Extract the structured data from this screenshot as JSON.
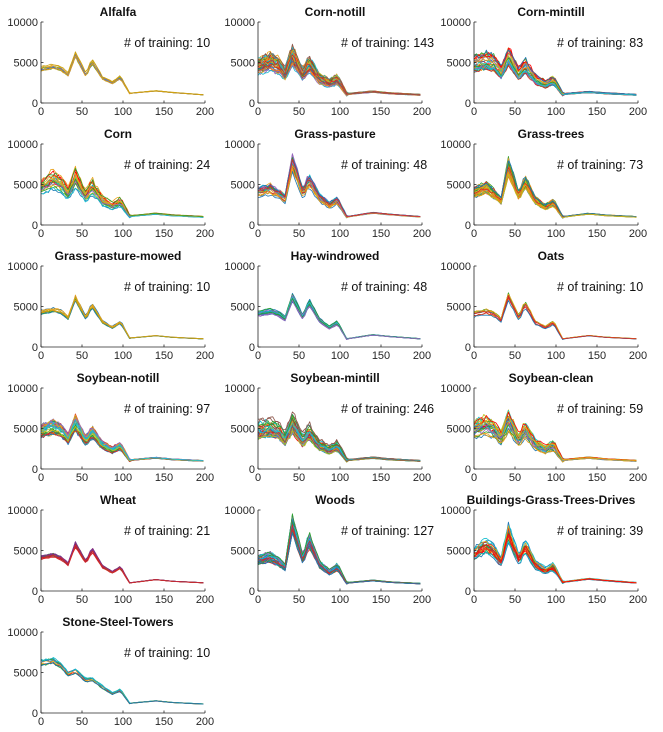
{
  "figure": {
    "type": "small-multiples",
    "layout": "6 rows x 3 columns, 16 panels"
  },
  "chart_data": [
    {
      "type": "line",
      "title": "Alfalfa",
      "annotation": "# of training: 10",
      "xlim": [
        0,
        200
      ],
      "ylim": [
        0,
        10000
      ],
      "xticks": [
        0,
        50,
        100,
        150,
        200
      ],
      "yticks": [
        0,
        5000,
        10000
      ],
      "n_series": 10,
      "profile": [
        4200,
        4500,
        4200,
        3500,
        6000,
        3400,
        5200,
        3100,
        2500,
        3200,
        1200,
        1500,
        1300,
        1000
      ],
      "spread": 0.08,
      "colors": [
        "#e8a018",
        "#c8a010",
        "#6a9a2a",
        "#5a6ec8"
      ]
    },
    {
      "type": "line",
      "title": "Corn-notill",
      "annotation": "# of training: 143",
      "xlim": [
        0,
        200
      ],
      "ylim": [
        0,
        10000
      ],
      "xticks": [
        0,
        50,
        100,
        150,
        200
      ],
      "yticks": [
        0,
        5000,
        10000
      ],
      "n_series": 40,
      "profile": [
        4500,
        5000,
        4600,
        3600,
        5800,
        3400,
        4800,
        3000,
        2400,
        2900,
        1100,
        1400,
        1200,
        1000
      ],
      "spread": 0.22,
      "colors": [
        "#ff0000",
        "#e8a018",
        "#2ca02c",
        "#1f77b4",
        "#9467bd",
        "#17becf",
        "#bcbd22",
        "#ff7f0e",
        "#d62728",
        "#8c564b"
      ]
    },
    {
      "type": "line",
      "title": "Corn-mintill",
      "annotation": "# of training: 83",
      "xlim": [
        0,
        200
      ],
      "ylim": [
        0,
        10000
      ],
      "xticks": [
        0,
        50,
        100,
        150,
        200
      ],
      "yticks": [
        0,
        5000,
        10000
      ],
      "n_series": 30,
      "profile": [
        4800,
        5200,
        4800,
        3700,
        5800,
        3400,
        4600,
        2900,
        2300,
        2800,
        1100,
        1350,
        1200,
        1000
      ],
      "spread": 0.2,
      "colors": [
        "#ff0000",
        "#e8a018",
        "#2ca02c",
        "#1f77b4",
        "#9467bd",
        "#17becf",
        "#bcbd22",
        "#d62728"
      ]
    },
    {
      "type": "line",
      "title": "Corn",
      "annotation": "# of training: 24",
      "xlim": [
        0,
        200
      ],
      "ylim": [
        0,
        10000
      ],
      "xticks": [
        0,
        50,
        100,
        150,
        200
      ],
      "yticks": [
        0,
        5000,
        10000
      ],
      "n_series": 24,
      "profile": [
        4700,
        5600,
        5000,
        3900,
        5800,
        3500,
        4800,
        3000,
        2400,
        2900,
        1100,
        1400,
        1200,
        1000
      ],
      "spread": 0.2,
      "colors": [
        "#ff0000",
        "#e8a018",
        "#2ca02c",
        "#1f77b4",
        "#9467bd",
        "#17becf",
        "#bcbd22"
      ]
    },
    {
      "type": "line",
      "title": "Grass-pasture",
      "annotation": "# of training: 48",
      "xlim": [
        0,
        200
      ],
      "ylim": [
        0,
        10000
      ],
      "xticks": [
        0,
        50,
        100,
        150,
        200
      ],
      "yticks": [
        0,
        5000,
        10000
      ],
      "n_series": 24,
      "profile": [
        4000,
        4400,
        3800,
        3200,
        7600,
        3800,
        5500,
        3300,
        2400,
        3000,
        1000,
        1500,
        1300,
        1000
      ],
      "spread": 0.15,
      "colors": [
        "#17becf",
        "#1f77b4",
        "#2ca02c",
        "#e8a018",
        "#9467bd",
        "#d62728"
      ]
    },
    {
      "type": "line",
      "title": "Grass-trees",
      "annotation": "# of training: 73",
      "xlim": [
        0,
        200
      ],
      "ylim": [
        0,
        10000
      ],
      "xticks": [
        0,
        50,
        100,
        150,
        200
      ],
      "yticks": [
        0,
        5000,
        10000
      ],
      "n_series": 30,
      "profile": [
        4000,
        4600,
        3800,
        3000,
        7200,
        3500,
        5400,
        3000,
        2200,
        2800,
        1000,
        1400,
        1200,
        1000
      ],
      "spread": 0.16,
      "colors": [
        "#e8a018",
        "#d62728",
        "#2ca02c",
        "#1f77b4",
        "#ff7f0e",
        "#bcbd22"
      ]
    },
    {
      "type": "line",
      "title": "Grass-pasture-mowed",
      "annotation": "# of training: 10",
      "xlim": [
        0,
        200
      ],
      "ylim": [
        0,
        10000
      ],
      "xticks": [
        0,
        50,
        100,
        150,
        200
      ],
      "yticks": [
        0,
        5000,
        10000
      ],
      "n_series": 10,
      "profile": [
        4300,
        4600,
        4300,
        3600,
        6000,
        3500,
        5200,
        3100,
        2400,
        3100,
        1100,
        1400,
        1200,
        1000
      ],
      "spread": 0.08,
      "colors": [
        "#e8a018",
        "#c8a010",
        "#2ca02c",
        "#1f77b4"
      ]
    },
    {
      "type": "line",
      "title": "Hay-windrowed",
      "annotation": "# of training: 48",
      "xlim": [
        0,
        200
      ],
      "ylim": [
        0,
        10000
      ],
      "xticks": [
        0,
        50,
        100,
        150,
        200
      ],
      "yticks": [
        0,
        5000,
        10000
      ],
      "n_series": 24,
      "profile": [
        4100,
        4400,
        4100,
        3500,
        6100,
        3600,
        5600,
        3300,
        2400,
        3000,
        1000,
        1500,
        1300,
        1000
      ],
      "spread": 0.08,
      "colors": [
        "#17becf",
        "#1f77b4",
        "#2ca02c",
        "#9467bd"
      ]
    },
    {
      "type": "line",
      "title": "Oats",
      "annotation": "# of training: 10",
      "xlim": [
        0,
        200
      ],
      "ylim": [
        0,
        10000
      ],
      "xticks": [
        0,
        50,
        100,
        150,
        200
      ],
      "yticks": [
        0,
        5000,
        10000
      ],
      "n_series": 10,
      "profile": [
        4000,
        4300,
        4000,
        3300,
        6200,
        3500,
        5300,
        3000,
        2400,
        3000,
        1000,
        1400,
        1200,
        1000
      ],
      "spread": 0.08,
      "colors": [
        "#e8a018",
        "#d62728",
        "#2ca02c",
        "#1f77b4"
      ]
    },
    {
      "type": "line",
      "title": "Soybean-notill",
      "annotation": "# of training: 97",
      "xlim": [
        0,
        200
      ],
      "ylim": [
        0,
        10000
      ],
      "xticks": [
        0,
        50,
        100,
        150,
        200
      ],
      "yticks": [
        0,
        5000,
        10000
      ],
      "n_series": 36,
      "profile": [
        4800,
        5300,
        4800,
        3800,
        5800,
        3500,
        4700,
        3000,
        2400,
        2900,
        1100,
        1400,
        1200,
        1000
      ],
      "spread": 0.18,
      "colors": [
        "#17becf",
        "#2ca02c",
        "#e8a018",
        "#1f77b4",
        "#d62728",
        "#9467bd",
        "#bcbd22"
      ]
    },
    {
      "type": "line",
      "title": "Soybean-mintill",
      "annotation": "# of training: 246",
      "xlim": [
        0,
        200
      ],
      "ylim": [
        0,
        10000
      ],
      "xticks": [
        0,
        50,
        100,
        150,
        200
      ],
      "yticks": [
        0,
        5000,
        10000
      ],
      "n_series": 50,
      "profile": [
        4800,
        5200,
        4800,
        3800,
        5800,
        3500,
        4700,
        3000,
        2400,
        2900,
        1100,
        1400,
        1200,
        1000
      ],
      "spread": 0.22,
      "colors": [
        "#ff0000",
        "#2ca02c",
        "#1f77b4",
        "#e8a018",
        "#9467bd",
        "#17becf",
        "#bcbd22",
        "#8c564b"
      ]
    },
    {
      "type": "line",
      "title": "Soybean-clean",
      "annotation": "# of training: 59",
      "xlim": [
        0,
        200
      ],
      "ylim": [
        0,
        10000
      ],
      "xticks": [
        0,
        50,
        100,
        150,
        200
      ],
      "yticks": [
        0,
        5000,
        10000
      ],
      "n_series": 30,
      "profile": [
        4800,
        5400,
        4800,
        3800,
        5900,
        3500,
        4800,
        3000,
        2400,
        2900,
        1100,
        1400,
        1200,
        1000
      ],
      "spread": 0.22,
      "colors": [
        "#ff0000",
        "#e8a018",
        "#2ca02c",
        "#1f77b4",
        "#9467bd",
        "#17becf",
        "#bcbd22"
      ]
    },
    {
      "type": "line",
      "title": "Wheat",
      "annotation": "# of training: 21",
      "xlim": [
        0,
        200
      ],
      "ylim": [
        0,
        10000
      ],
      "xticks": [
        0,
        50,
        100,
        150,
        200
      ],
      "yticks": [
        0,
        5000,
        10000
      ],
      "n_series": 15,
      "profile": [
        4100,
        4400,
        4000,
        3300,
        5700,
        3500,
        5100,
        3000,
        2300,
        2900,
        1000,
        1400,
        1200,
        1000
      ],
      "spread": 0.06,
      "colors": [
        "#9b1c4a",
        "#7e2f8e",
        "#d62728",
        "#2ca02c"
      ]
    },
    {
      "type": "line",
      "title": "Woods",
      "annotation": "# of training: 127",
      "xlim": [
        0,
        200
      ],
      "ylim": [
        0,
        10000
      ],
      "xticks": [
        0,
        50,
        100,
        150,
        200
      ],
      "yticks": [
        0,
        5000,
        10000
      ],
      "n_series": 36,
      "profile": [
        3800,
        4200,
        3600,
        2900,
        8200,
        3800,
        6400,
        3300,
        2300,
        3000,
        1000,
        1300,
        1100,
        900
      ],
      "spread": 0.14,
      "colors": [
        "#1f77b4",
        "#17becf",
        "#9467bd",
        "#2ca02c",
        "#d62728"
      ]
    },
    {
      "type": "line",
      "title": "Buildings-Grass-Trees-Drives",
      "annotation": "# of training: 39",
      "xlim": [
        0,
        200
      ],
      "ylim": [
        0,
        10000
      ],
      "xticks": [
        0,
        50,
        100,
        150,
        200
      ],
      "yticks": [
        0,
        5000,
        10000
      ],
      "n_series": 22,
      "profile": [
        4600,
        5600,
        4800,
        3600,
        7200,
        3800,
        5600,
        3200,
        2500,
        3000,
        1100,
        1500,
        1300,
        1000
      ],
      "spread": 0.16,
      "colors": [
        "#1f77b4",
        "#17becf",
        "#d62728",
        "#ff0000",
        "#2ca02c",
        "#e8a018"
      ]
    },
    {
      "type": "line",
      "title": "Stone-Steel-Towers",
      "annotation": "# of training: 10",
      "xlim": [
        0,
        200
      ],
      "ylim": [
        0,
        10000
      ],
      "xticks": [
        0,
        50,
        100,
        150,
        200
      ],
      "yticks": [
        0,
        5000,
        10000
      ],
      "n_series": 10,
      "profile": [
        6200,
        6400,
        5800,
        4800,
        5200,
        4000,
        4200,
        3200,
        2400,
        2800,
        1200,
        1500,
        1300,
        1100
      ],
      "spread": 0.07,
      "colors": [
        "#17becf",
        "#e8a018",
        "#d62728",
        "#2ca02c",
        "#1f77b4"
      ]
    }
  ]
}
